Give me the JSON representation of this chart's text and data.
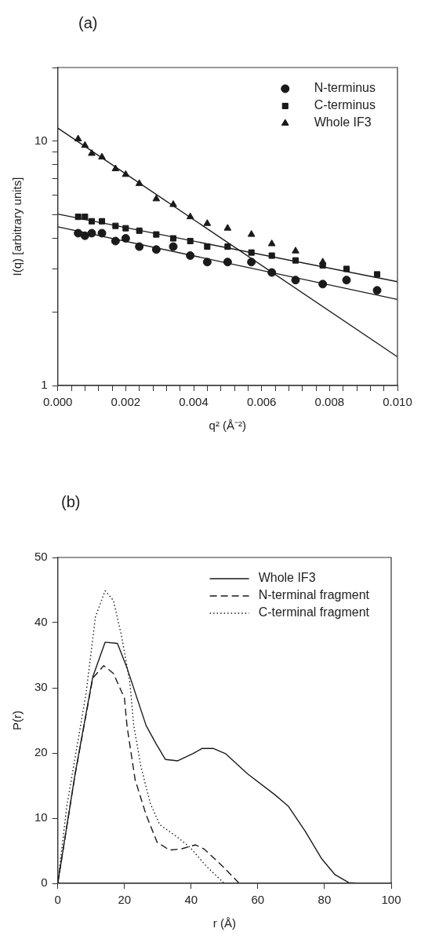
{
  "chart_data": [
    {
      "type": "scatter",
      "title": "(a)",
      "xlabel": "q² (Å⁻²)",
      "ylabel": "I(q) [arbitrary units]",
      "log": "y",
      "legend": "top right",
      "grid": false,
      "xlim": [
        0,
        0.01
      ],
      "xticks": [
        {
          "value": 0,
          "label": "0.000"
        },
        {
          "value": 0.0004,
          "label": null
        },
        {
          "value": 0.0008,
          "label": null
        },
        {
          "value": 0.0012,
          "label": null
        },
        {
          "value": 0.0016,
          "label": null
        },
        {
          "value": 0.002,
          "label": "0.002"
        },
        {
          "value": 0.0024,
          "label": null
        },
        {
          "value": 0.0028,
          "label": null
        },
        {
          "value": 0.0032,
          "label": null
        },
        {
          "value": 0.0036,
          "label": null
        },
        {
          "value": 0.004,
          "label": "0.004"
        },
        {
          "value": 0.0044,
          "label": null
        },
        {
          "value": 0.0048,
          "label": null
        },
        {
          "value": 0.0052,
          "label": null
        },
        {
          "value": 0.0056,
          "label": null
        },
        {
          "value": 0.006,
          "label": "0.006"
        },
        {
          "value": 0.0064,
          "label": null
        },
        {
          "value": 0.0068,
          "label": null
        },
        {
          "value": 0.0072,
          "label": null
        },
        {
          "value": 0.0076,
          "label": null
        },
        {
          "value": 0.008,
          "label": "0.008"
        },
        {
          "value": 0.0084,
          "label": null
        },
        {
          "value": 0.0088,
          "label": null
        },
        {
          "value": 0.0092,
          "label": null
        },
        {
          "value": 0.0096,
          "label": null
        },
        {
          "value": 0.01,
          "label": "0.010"
        }
      ],
      "ylim": [
        1,
        20
      ],
      "yticks": [
        1,
        {
          "value": 2,
          "label": null
        },
        {
          "value": 3,
          "label": null
        },
        {
          "value": 4,
          "label": null
        },
        {
          "value": 5,
          "label": null
        },
        {
          "value": 6,
          "label": null
        },
        {
          "value": 7,
          "label": null
        },
        {
          "value": 8,
          "label": null
        },
        {
          "value": 9,
          "label": null
        },
        10,
        {
          "value": 20,
          "label": null
        }
      ],
      "series": [
        {
          "name": "N-terminus",
          "color": "#1a1a1a",
          "marker": "circle",
          "x": [
            0.0006,
            0.0008,
            0.001,
            0.0013,
            0.0017,
            0.002,
            0.0024,
            0.0029,
            0.0034,
            0.0039,
            0.0044,
            0.005,
            0.0057,
            0.0063,
            0.007,
            0.0078,
            0.0085,
            0.0094
          ],
          "values": [
            4.2,
            4.1,
            4.2,
            4.2,
            3.9,
            4.0,
            3.7,
            3.6,
            3.7,
            3.4,
            3.2,
            3.2,
            3.2,
            2.9,
            2.7,
            2.6,
            2.7,
            2.45
          ]
        },
        {
          "name": "C-terminus",
          "color": "#1a1a1a",
          "marker": "square",
          "x": [
            0.0006,
            0.0008,
            0.001,
            0.0013,
            0.0017,
            0.002,
            0.0024,
            0.0029,
            0.0034,
            0.0039,
            0.0044,
            0.005,
            0.0057,
            0.0063,
            0.007,
            0.0078,
            0.0085,
            0.0094
          ],
          "values": [
            4.9,
            4.9,
            4.7,
            4.7,
            4.5,
            4.4,
            4.3,
            4.15,
            4.0,
            3.9,
            3.7,
            3.7,
            3.5,
            3.4,
            3.25,
            3.1,
            3.0,
            2.85
          ]
        },
        {
          "name": "Whole IF3",
          "color": "#1a1a1a",
          "marker": "triangle",
          "x": [
            0.0006,
            0.0008,
            0.001,
            0.0013,
            0.0017,
            0.002,
            0.0024,
            0.0029,
            0.0034,
            0.0039,
            0.0044,
            0.005,
            0.0057,
            0.0063,
            0.007,
            0.0078
          ],
          "values": [
            10.2,
            9.6,
            8.9,
            8.6,
            7.7,
            7.3,
            6.7,
            5.8,
            5.5,
            4.9,
            4.6,
            4.4,
            4.15,
            3.8,
            3.55,
            3.2
          ]
        },
        {
          "type": "line",
          "color": "#1a1a1a",
          "marker": "none",
          "x": [
            0,
            0.01
          ],
          "values": [
            4.46,
            2.25
          ]
        },
        {
          "type": "line",
          "color": "#1a1a1a",
          "marker": "none",
          "x": [
            0,
            0.01
          ],
          "values": [
            5.03,
            2.66
          ]
        },
        {
          "type": "line",
          "color": "#1a1a1a",
          "marker": "none",
          "x": [
            0,
            0.01
          ],
          "values": [
            11.3,
            1.31
          ]
        }
      ]
    },
    {
      "type": "line",
      "title": "(b)",
      "xlabel": "r (Å)",
      "ylabel": "P(r)",
      "legend": "top right",
      "grid": false,
      "marker": "none",
      "xlim": [
        0,
        100
      ],
      "xticks": [
        0,
        20,
        40,
        60,
        80,
        100
      ],
      "ylim": [
        0,
        50
      ],
      "yticks": [
        0,
        10,
        20,
        30,
        40,
        50
      ],
      "series": [
        {
          "name": "Whole IF3",
          "color": "#1a1a1a",
          "line_style": "solid",
          "x": [
            0,
            5.2,
            10.5,
            14.2,
            17.9,
            20.8,
            26.5,
            29.4,
            32.3,
            36,
            40.5,
            43.3,
            46.6,
            50.3,
            56.9,
            65.1,
            69.2,
            74.2,
            79.1,
            83.2,
            87.3,
            91,
            100
          ],
          "values": [
            0,
            16.8,
            31.7,
            37,
            36.8,
            33,
            24.2,
            21.5,
            19,
            18.8,
            19.9,
            20.7,
            20.7,
            19.9,
            16.8,
            13.6,
            11.8,
            8,
            3.8,
            1.3,
            0.1,
            0,
            0
          ]
        },
        {
          "name": "N-terminal fragment",
          "color": "#1a1a1a",
          "line_style": "dashed",
          "x": [
            0,
            5.2,
            10.5,
            13.8,
            16.7,
            20,
            20.8,
            23.2,
            26.5,
            29.8,
            33.5,
            37.2,
            41.3,
            43.8,
            49.5,
            54.4
          ],
          "values": [
            0,
            16.7,
            31.5,
            33.4,
            32.2,
            28.4,
            24,
            15.9,
            10.5,
            6.3,
            5.1,
            5.3,
            5.9,
            5.3,
            2.6,
            0
          ]
        },
        {
          "name": "C-terminal fragment",
          "color": "#1a1a1a",
          "line_style": "dotted",
          "x": [
            0,
            2.7,
            8.5,
            11.3,
            14.2,
            16.7,
            19.1,
            21.6,
            22.8,
            24.9,
            27.8,
            30.6,
            35.6,
            39.7,
            44.6,
            49.9
          ],
          "values": [
            0,
            11.8,
            29.2,
            40.9,
            44.9,
            43.4,
            38,
            30.9,
            24.2,
            18,
            12.2,
            9,
            7.2,
            5.5,
            2.6,
            0
          ]
        }
      ]
    }
  ]
}
